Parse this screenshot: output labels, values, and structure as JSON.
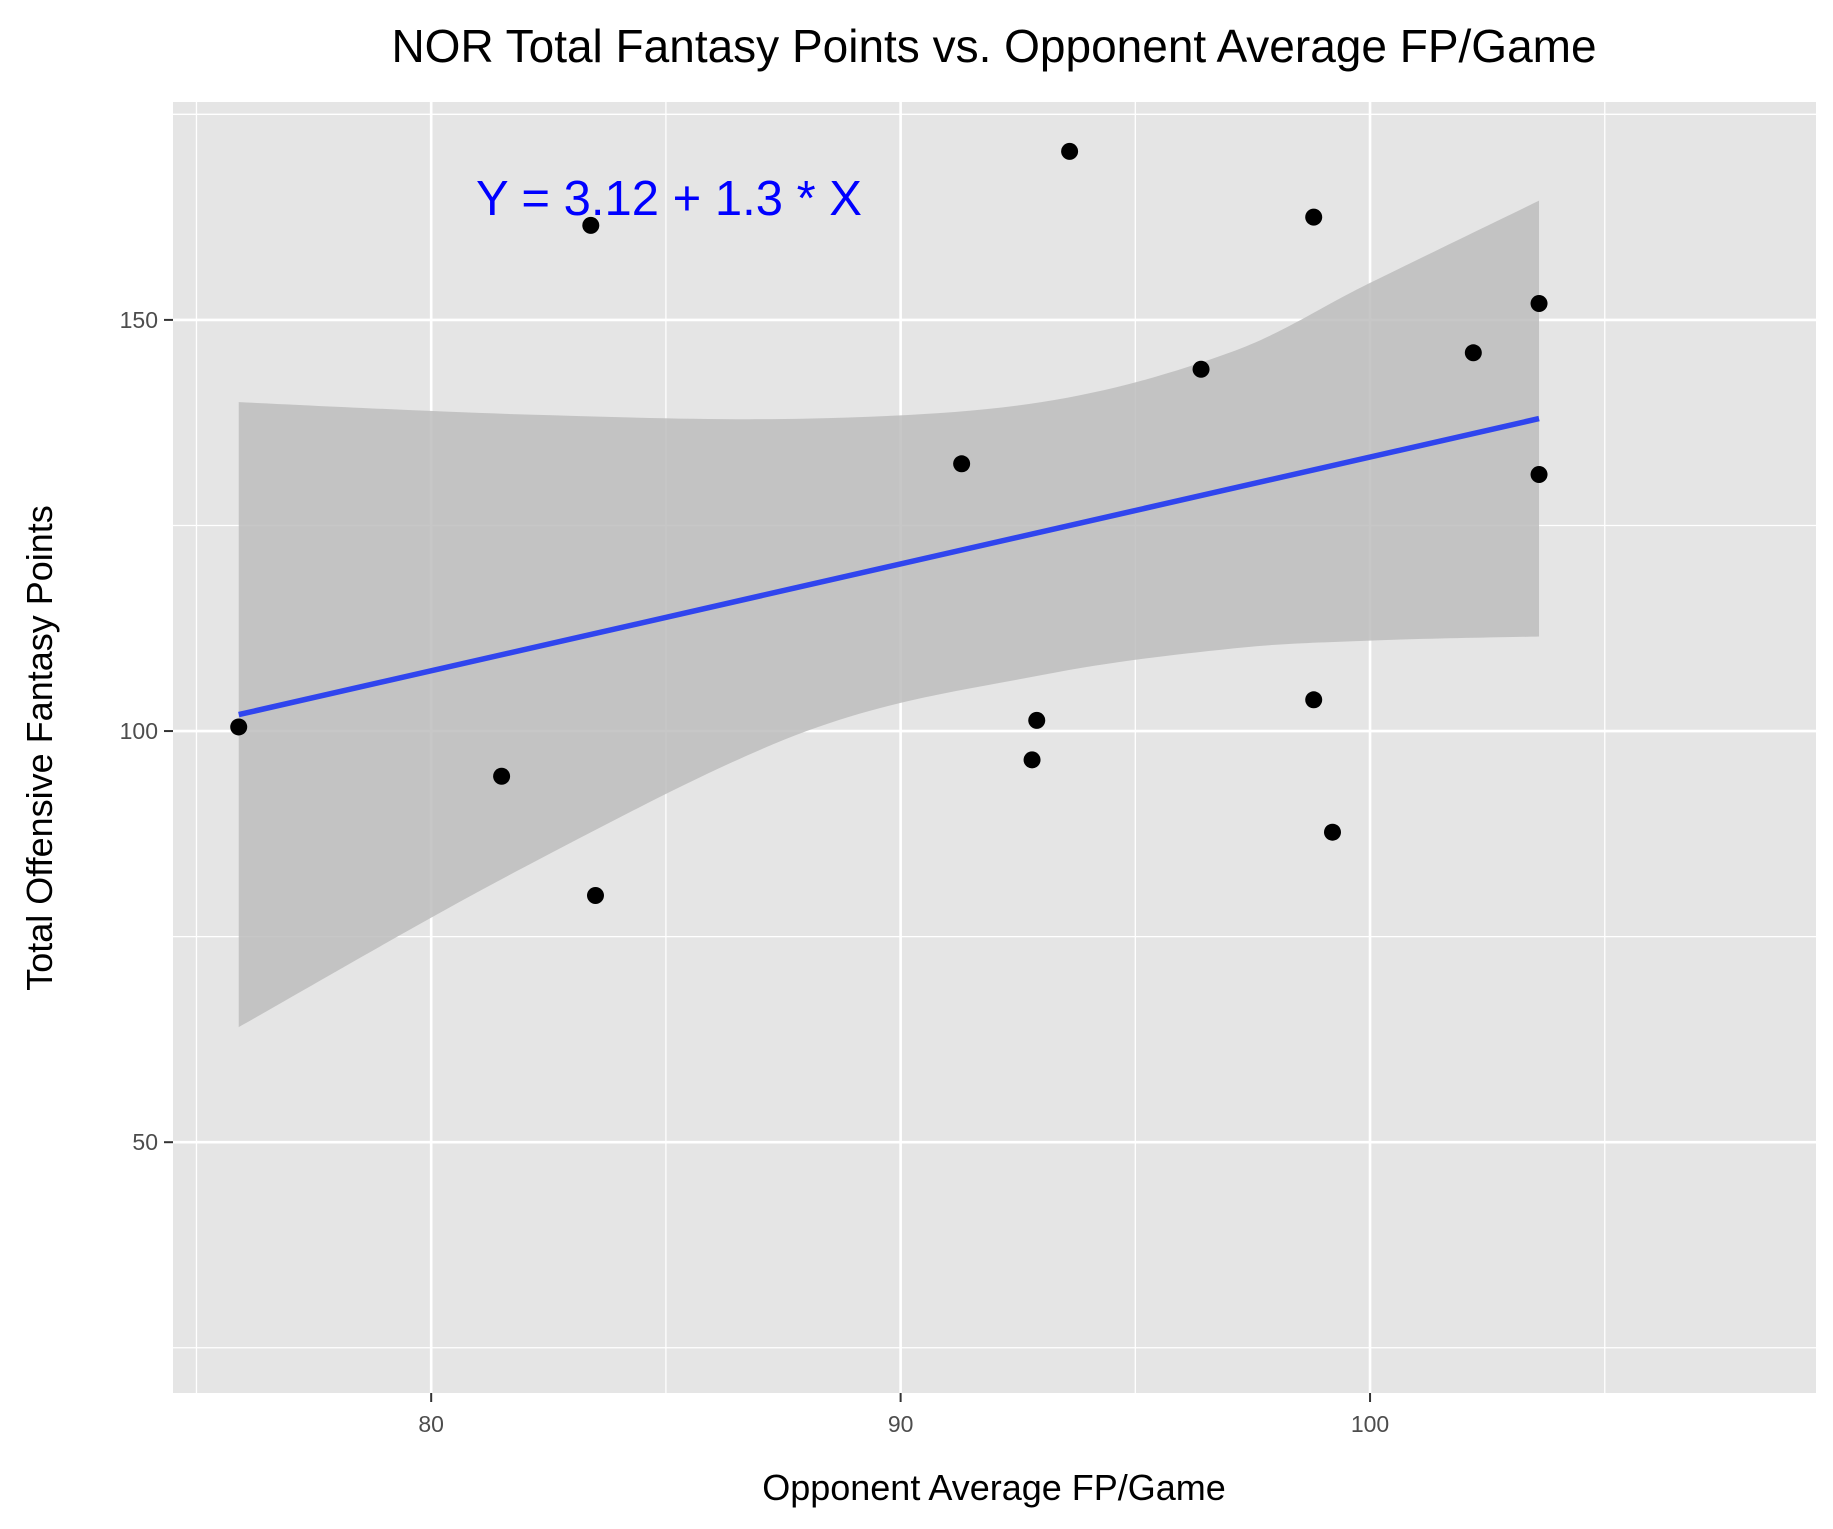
{
  "chart_data": {
    "type": "scatter",
    "title": "NOR Total Fantasy Points vs. Opponent Average FP/Game",
    "xlabel": "Opponent Average FP/Game",
    "ylabel": "Total Offensive Fantasy Points",
    "xlim": [
      74.5,
      109.5
    ],
    "ylim": [
      19.5,
      176.5
    ],
    "x_ticks": [
      80,
      90,
      100
    ],
    "y_ticks": [
      50,
      100,
      150
    ],
    "x_minor": [
      75,
      85,
      95,
      105
    ],
    "y_minor": [
      25,
      75,
      125,
      175
    ],
    "grid": true,
    "legend": "none",
    "points": [
      {
        "x": 75.9,
        "y": 100.5
      },
      {
        "x": 81.5,
        "y": 94.5
      },
      {
        "x": 83.4,
        "y": 161.5
      },
      {
        "x": 83.5,
        "y": 80.0
      },
      {
        "x": 91.3,
        "y": 132.5
      },
      {
        "x": 92.8,
        "y": 96.5
      },
      {
        "x": 92.9,
        "y": 101.3
      },
      {
        "x": 93.6,
        "y": 170.5
      },
      {
        "x": 96.4,
        "y": 144.0
      },
      {
        "x": 98.8,
        "y": 162.5
      },
      {
        "x": 98.8,
        "y": 103.8
      },
      {
        "x": 99.2,
        "y": 87.7
      },
      {
        "x": 102.2,
        "y": 146.0
      },
      {
        "x": 103.6,
        "y": 152.0
      },
      {
        "x": 103.6,
        "y": 131.2
      }
    ],
    "regression": {
      "x_range": [
        75.9,
        103.6
      ],
      "line_y": [
        102.0,
        138.0
      ],
      "ci_lower": [
        [
          75.9,
          64
        ],
        [
          82.0,
          83.5
        ],
        [
          88.0,
          100.0
        ],
        [
          93.0,
          106.8
        ],
        [
          97.0,
          110.0
        ],
        [
          100.0,
          111.0
        ],
        [
          103.6,
          111.5
        ]
      ],
      "ci_upper": [
        [
          75.9,
          140
        ],
        [
          82.0,
          138.5
        ],
        [
          88.0,
          138.0
        ],
        [
          93.0,
          140.0
        ],
        [
          97.0,
          146.0
        ],
        [
          100.0,
          154.5
        ],
        [
          103.6,
          164.5
        ]
      ]
    },
    "annotation": "Y = 3.12 + 1.3 * X"
  },
  "colors": {
    "panel_bg": "#e5e5e5",
    "grid": "#ffffff",
    "line": "#3045ee",
    "band": "#bdbdbd",
    "point": "#000000",
    "annotation": "#0000ff",
    "tick_text": "#4d4d4d",
    "tick_mark": "#333333"
  }
}
